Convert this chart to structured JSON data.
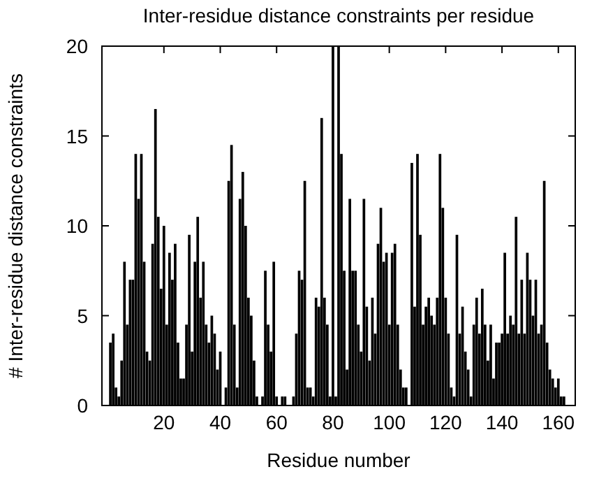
{
  "chart_data": {
    "type": "bar",
    "title": "Inter-residue distance constraints per residue",
    "xlabel": "Residue number",
    "ylabel": "# Inter-residue distance constraints",
    "color": "#000000",
    "x": [
      1,
      2,
      3,
      4,
      5,
      6,
      7,
      8,
      9,
      10,
      11,
      12,
      13,
      14,
      15,
      16,
      17,
      18,
      19,
      20,
      21,
      22,
      23,
      24,
      25,
      26,
      27,
      28,
      29,
      30,
      31,
      32,
      33,
      34,
      35,
      36,
      37,
      38,
      39,
      40,
      41,
      42,
      43,
      44,
      45,
      46,
      47,
      48,
      49,
      50,
      51,
      52,
      53,
      54,
      55,
      56,
      57,
      58,
      59,
      60,
      61,
      62,
      63,
      64,
      65,
      66,
      67,
      68,
      69,
      70,
      71,
      72,
      73,
      74,
      75,
      76,
      77,
      78,
      79,
      80,
      81,
      82,
      83,
      84,
      85,
      86,
      87,
      88,
      89,
      90,
      91,
      92,
      93,
      94,
      95,
      96,
      97,
      98,
      99,
      100,
      101,
      102,
      103,
      104,
      105,
      106,
      107,
      108,
      109,
      110,
      111,
      112,
      113,
      114,
      115,
      116,
      117,
      118,
      119,
      120,
      121,
      122,
      123,
      124,
      125,
      126,
      127,
      128,
      129,
      130,
      131,
      132,
      133,
      134,
      135,
      136,
      137,
      138,
      139,
      140,
      141,
      142,
      143,
      144,
      145,
      146,
      147,
      148,
      149,
      150,
      151,
      152,
      153,
      154,
      155,
      156,
      157,
      158,
      159,
      160,
      161,
      162
    ],
    "values": [
      3.5,
      4,
      1,
      0.5,
      2.5,
      8,
      4.5,
      7,
      7,
      14,
      11.5,
      14,
      8,
      3,
      2.5,
      9,
      16.5,
      10.5,
      6.5,
      10,
      4.5,
      8.5,
      7,
      9,
      3.5,
      1.5,
      1.5,
      4.5,
      9.5,
      3,
      8,
      10.5,
      6,
      8,
      4.5,
      3.5,
      5,
      4,
      2,
      3,
      0,
      1,
      12.5,
      14.5,
      4.5,
      1,
      11.5,
      13,
      10,
      6,
      5,
      2.5,
      0.5,
      0,
      0.5,
      7.5,
      4.5,
      3,
      8,
      0.5,
      0,
      0.5,
      0.5,
      0,
      0,
      0.5,
      4,
      7.5,
      7,
      12.5,
      1,
      1,
      0.5,
      6,
      5.5,
      16,
      6,
      4.5,
      0.5,
      20,
      0.5,
      20,
      14,
      7.5,
      2,
      11.5,
      7.5,
      7.5,
      4.5,
      3,
      11.5,
      5.5,
      2.5,
      6,
      4,
      9,
      11,
      8,
      8.5,
      4.5,
      8.5,
      9,
      4.5,
      2,
      1,
      1,
      0,
      13.5,
      5.5,
      14,
      9.5,
      4.5,
      5.5,
      6,
      5,
      4.5,
      6,
      14,
      11,
      6,
      4,
      1,
      0.5,
      9.5,
      4,
      5.5,
      3,
      2,
      0.5,
      4.5,
      6,
      4,
      6.5,
      4.5,
      2.5,
      4.5,
      1.5,
      3.5,
      3.5,
      4,
      8.5,
      4,
      5,
      4.5,
      10.5,
      4,
      7,
      4,
      8.5,
      7,
      5,
      7,
      4,
      4.5,
      12.5,
      3.5,
      2,
      1.5,
      1,
      1.5,
      0.5,
      0.5
    ],
    "xlim": [
      -2,
      166
    ],
    "xticks": [
      20,
      40,
      60,
      80,
      100,
      120,
      140,
      160
    ],
    "ylim": [
      0,
      20
    ],
    "yticks": [
      0,
      5,
      10,
      15,
      20
    ],
    "grid": false
  }
}
